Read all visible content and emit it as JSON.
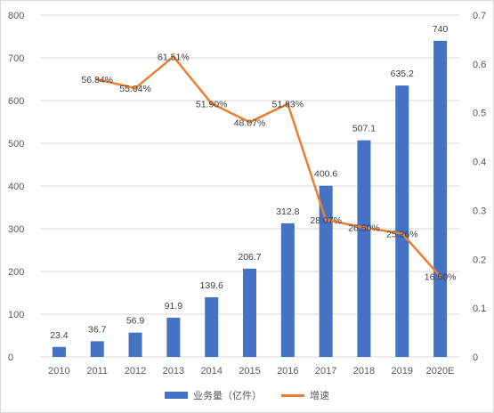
{
  "chart_data": {
    "type": "bar",
    "categories": [
      "2010",
      "2011",
      "2012",
      "2013",
      "2014",
      "2015",
      "2016",
      "2017",
      "2018",
      "2019",
      "2020E"
    ],
    "series": [
      {
        "name": "业务量（亿件）",
        "type": "bar",
        "axis": "left",
        "color": "#4472c4",
        "values": [
          23.4,
          36.7,
          56.9,
          91.9,
          139.6,
          206.7,
          312.8,
          400.6,
          507.1,
          635.2,
          740
        ],
        "value_labels": [
          "23.4",
          "36.7",
          "56.9",
          "91.9",
          "139.6",
          "206.7",
          "312.8",
          "400.6",
          "507.1",
          "635.2",
          "740"
        ]
      },
      {
        "name": "增速",
        "type": "line",
        "axis": "right",
        "color": "#ed7d31",
        "values": [
          null,
          0.5684,
          0.5504,
          0.6151,
          0.519,
          0.4807,
          0.5183,
          0.2807,
          0.265,
          0.2526,
          0.165
        ],
        "value_labels": [
          "",
          "56.84%",
          "55.04%",
          "61.51%",
          "51.90%",
          "48.07%",
          "51.83%",
          "28.07%",
          "26.50%",
          "25.26%",
          "16.50%"
        ]
      }
    ],
    "y_left": {
      "min": 0,
      "max": 800,
      "ticks": [
        "0",
        "100",
        "200",
        "300",
        "400",
        "500",
        "600",
        "700",
        "800"
      ]
    },
    "y_right": {
      "min": 0,
      "max": 0.7,
      "ticks": [
        "0",
        "0.1",
        "0.2",
        "0.3",
        "0.4",
        "0.5",
        "0.6",
        "0.7"
      ]
    },
    "grid": true,
    "legend_position": "bottom"
  },
  "legend": {
    "bar_label": "业务量（亿件）",
    "line_label": "增速"
  }
}
